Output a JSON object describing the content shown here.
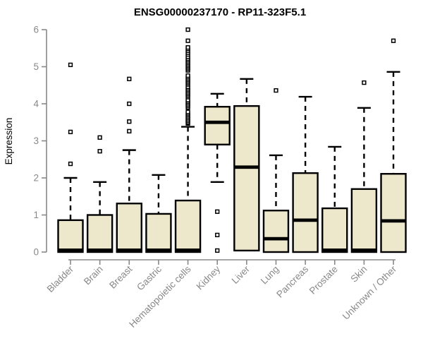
{
  "chart_data": {
    "type": "boxplot",
    "title": "ENSG00000237170 - RP11-323F5.1",
    "xlabel": "",
    "ylabel": "Expression",
    "ylim": [
      0,
      6
    ],
    "yticks": [
      0,
      1,
      2,
      3,
      4,
      5,
      6
    ],
    "grid": false,
    "legend": "none",
    "categories": [
      "Bladder",
      "Brain",
      "Breast",
      "Gastric",
      "Hematopoietic cells",
      "Kidney",
      "Liver",
      "Lung",
      "Pancreas",
      "Prostate",
      "Skin",
      "Unknown / Other"
    ],
    "boxes": [
      {
        "category": "Bladder",
        "whisker_low": 0,
        "q1": 0,
        "median": 0.05,
        "q3": 0.86,
        "whisker_high": 2.0,
        "outliers": [
          2.38,
          3.24,
          5.05
        ]
      },
      {
        "category": "Brain",
        "whisker_low": 0,
        "q1": 0,
        "median": 0.05,
        "q3": 1.0,
        "whisker_high": 1.89,
        "outliers": [
          2.72,
          3.09
        ]
      },
      {
        "category": "Breast",
        "whisker_low": 0,
        "q1": 0,
        "median": 0.05,
        "q3": 1.31,
        "whisker_high": 2.75,
        "outliers": [
          3.26,
          3.52,
          4.0,
          4.67
        ]
      },
      {
        "category": "Gastric",
        "whisker_low": 0,
        "q1": 0,
        "median": 0.05,
        "q3": 1.03,
        "whisker_high": 2.08,
        "outliers": []
      },
      {
        "category": "Hematopoietic cells",
        "whisker_low": 0,
        "q1": 0,
        "median": 0.05,
        "q3": 1.39,
        "whisker_high": 3.38,
        "outliers": [
          3.47,
          3.5,
          3.54,
          3.58,
          3.62,
          3.66,
          3.7,
          3.74,
          3.78,
          3.9,
          3.94,
          3.98,
          4.02,
          4.06,
          4.1,
          4.18,
          4.22,
          4.26,
          4.3,
          4.34,
          4.38,
          4.42,
          4.46,
          4.52,
          4.56,
          4.6,
          4.64,
          4.68,
          4.72,
          4.76,
          4.9,
          4.94,
          4.98,
          5.02,
          5.06,
          5.1,
          5.14,
          5.18,
          5.22,
          5.27,
          5.33,
          5.38,
          5.43,
          5.48,
          5.52,
          5.7,
          6.0
        ]
      },
      {
        "category": "Kidney",
        "whisker_low": 1.89,
        "q1": 2.9,
        "median": 3.5,
        "q3": 3.92,
        "whisker_high": 4.27,
        "outliers": [
          0.04,
          0.46,
          1.09
        ]
      },
      {
        "category": "Liver",
        "whisker_low": 0.04,
        "q1": 0.04,
        "median": 2.29,
        "q3": 3.94,
        "whisker_high": 4.67,
        "outliers": []
      },
      {
        "category": "Lung",
        "whisker_low": 0,
        "q1": 0,
        "median": 0.36,
        "q3": 1.12,
        "whisker_high": 2.61,
        "outliers": [
          4.36
        ]
      },
      {
        "category": "Pancreas",
        "whisker_low": 0,
        "q1": 0,
        "median": 0.86,
        "q3": 2.13,
        "whisker_high": 4.19,
        "outliers": []
      },
      {
        "category": "Prostate",
        "whisker_low": 0,
        "q1": 0,
        "median": 0.05,
        "q3": 1.18,
        "whisker_high": 2.84,
        "outliers": []
      },
      {
        "category": "Skin",
        "whisker_low": 0,
        "q1": 0,
        "median": 0.05,
        "q3": 1.7,
        "whisker_high": 3.89,
        "outliers": [
          4.57
        ]
      },
      {
        "category": "Unknown / Other",
        "whisker_low": 0,
        "q1": 0,
        "median": 0.84,
        "q3": 2.11,
        "whisker_high": 4.86,
        "outliers": [
          5.7
        ]
      }
    ],
    "colors": {
      "box_fill": "#EDE7CC",
      "box_border": "#000000",
      "median": "#000000",
      "whisker": "#000000",
      "outlier_stroke": "#000000",
      "outlier_fill": "#ffffff",
      "axis": "#888888",
      "tick_label": "#888888",
      "axis_label": "#888888",
      "title": "#000000",
      "background": "#ffffff"
    }
  }
}
